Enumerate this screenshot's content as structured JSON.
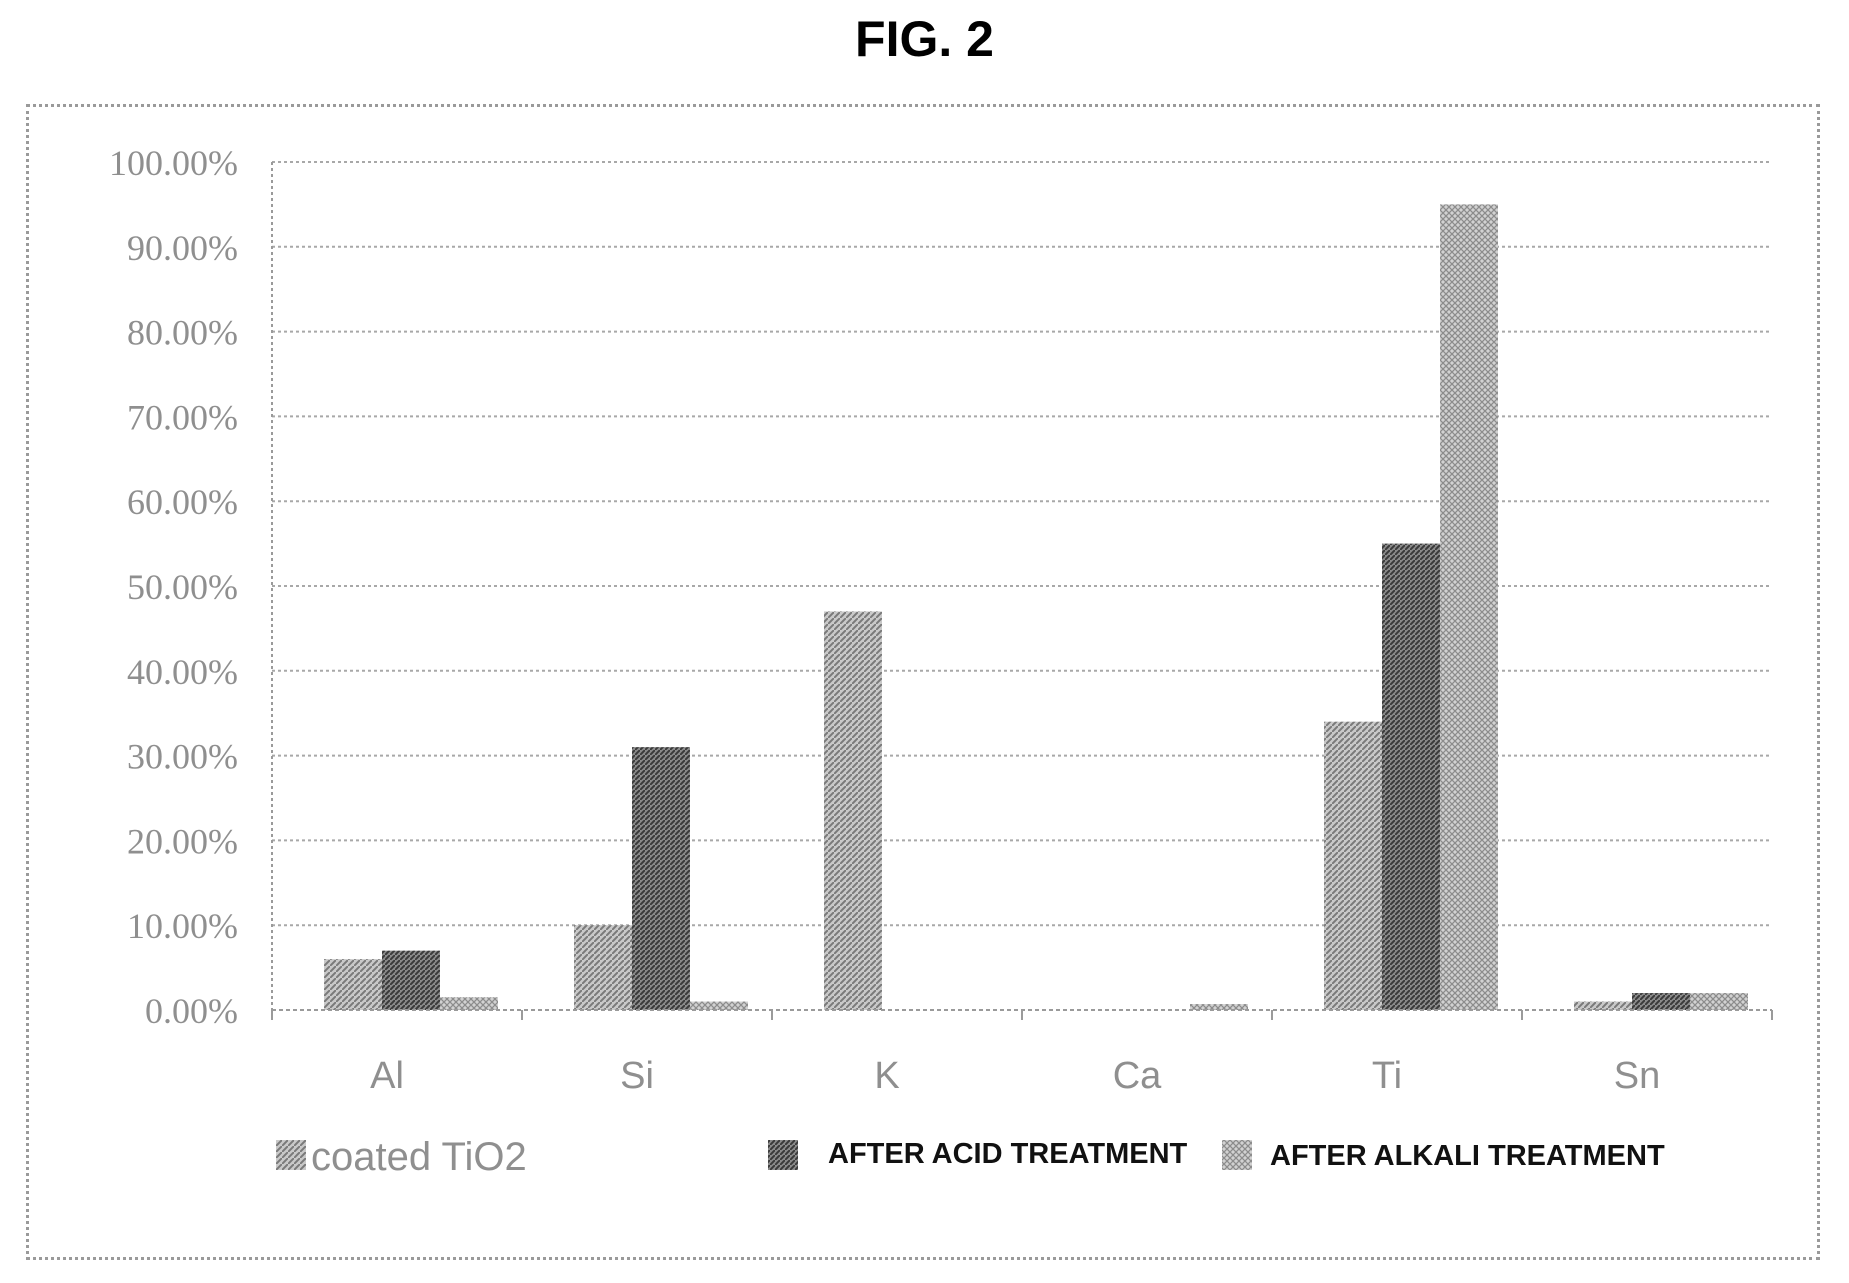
{
  "figure_title": "FIG. 2",
  "colors": {
    "grid": "#a8a8a8",
    "axis": "#9a9a9a",
    "text": "#8f8f8f"
  },
  "chart_data": {
    "type": "bar",
    "title": "",
    "xlabel": "",
    "ylabel": "",
    "categories": [
      "Al",
      "Si",
      "K",
      "Ca",
      "Ti",
      "Sn"
    ],
    "ylim": [
      0,
      1.0
    ],
    "yticks": [
      "0.00%",
      "10.00%",
      "20.00%",
      "30.00%",
      "40.00%",
      "50.00%",
      "60.00%",
      "70.00%",
      "80.00%",
      "90.00%",
      "100.00%"
    ],
    "grid": true,
    "legend_position": "bottom",
    "series": [
      {
        "name": "coated TiO2",
        "color": "#9a9a9a",
        "pattern": "diag-light",
        "values": [
          0.06,
          0.1,
          0.47,
          0.0,
          0.34,
          0.01
        ]
      },
      {
        "name": "AFTER ACID TREATMENT",
        "color": "#6a6a6a",
        "pattern": "diag-dark",
        "values": [
          0.07,
          0.31,
          0.0,
          0.0,
          0.55,
          0.02
        ]
      },
      {
        "name": "AFTER ALKALI TREATMENT",
        "color": "#b5b5b5",
        "pattern": "cross",
        "values": [
          0.015,
          0.01,
          0.0,
          0.007,
          0.95,
          0.02
        ]
      }
    ]
  }
}
